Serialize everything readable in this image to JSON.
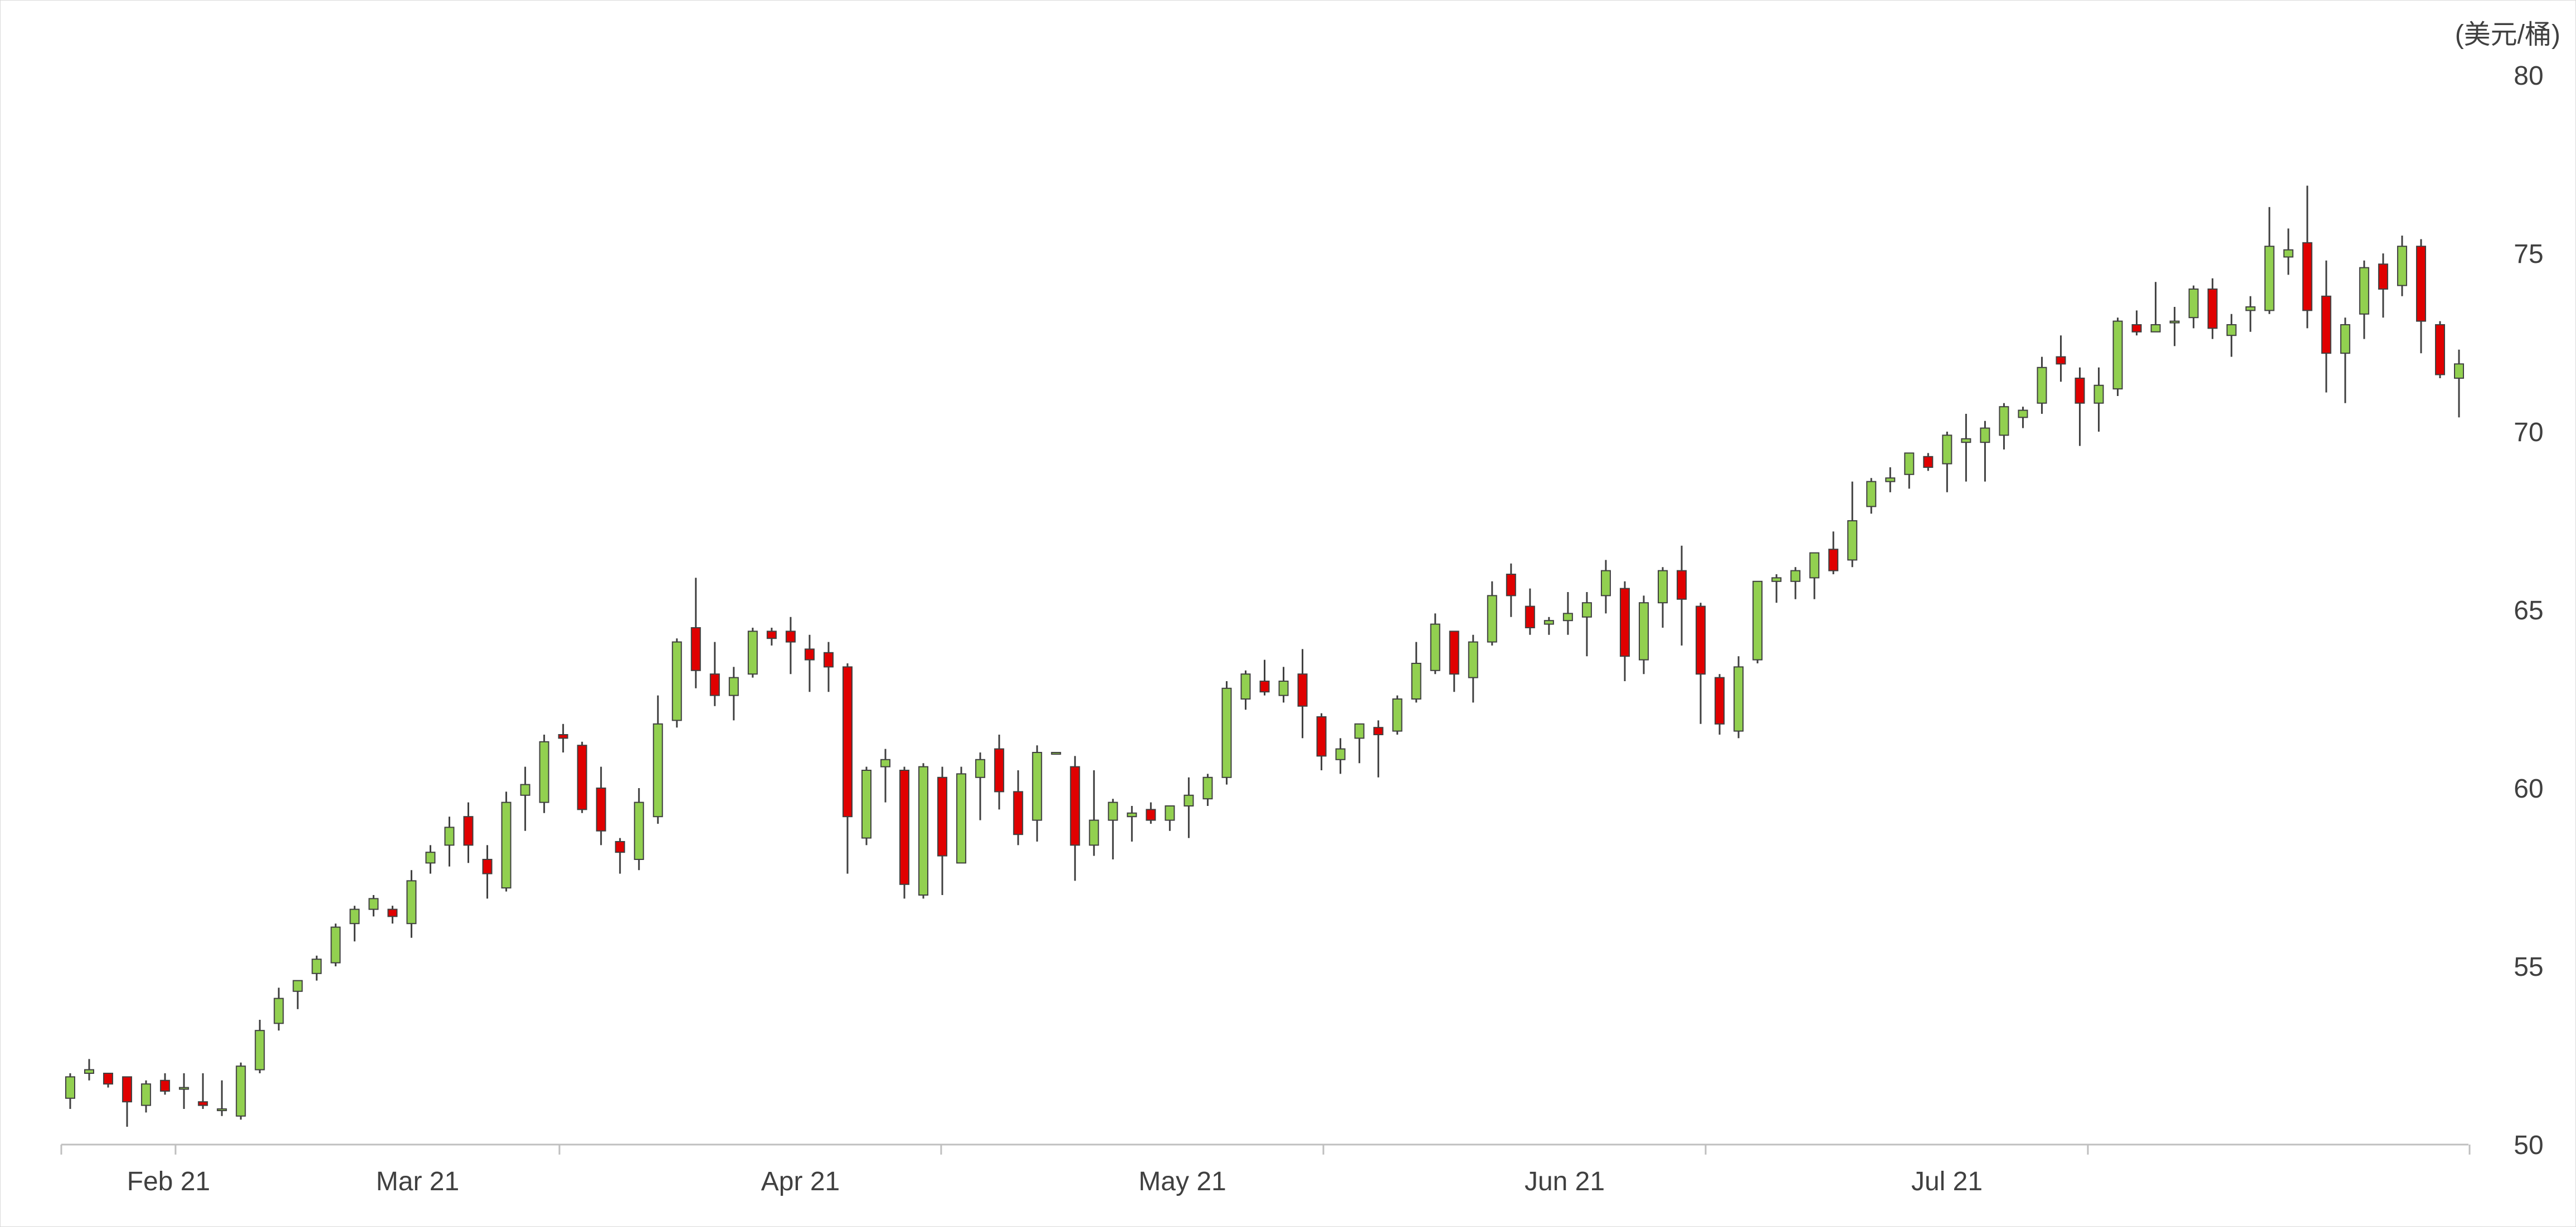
{
  "chart_data": {
    "type": "candlestick",
    "unit": "(美元/桶)",
    "y_axis": {
      "position": "right",
      "min": 50,
      "max": 80,
      "ticks": [
        50,
        55,
        60,
        65,
        70,
        75,
        80
      ]
    },
    "x_axis": {
      "labels": [
        "Feb 21",
        "Mar 21",
        "Apr 21",
        "May 21",
        "Jun 21",
        "Jul 21"
      ]
    },
    "colors": {
      "up": "#92d050",
      "down": "#e00000",
      "wick": "#404040",
      "axis": "#bfbfbf"
    },
    "candles": [
      [
        51.3,
        52.0,
        51.0,
        51.9
      ],
      [
        52.0,
        52.4,
        51.8,
        52.1
      ],
      [
        52.0,
        52.0,
        51.6,
        51.7
      ],
      [
        51.9,
        51.9,
        50.5,
        51.2
      ],
      [
        51.1,
        51.8,
        50.9,
        51.7
      ],
      [
        51.8,
        52.0,
        51.4,
        51.5
      ],
      [
        51.6,
        52.0,
        51.0,
        51.6
      ],
      [
        51.2,
        52.0,
        51.0,
        51.1
      ],
      [
        51.0,
        51.8,
        50.8,
        51.0
      ],
      [
        50.8,
        52.3,
        50.7,
        52.2
      ],
      [
        52.1,
        53.5,
        52.0,
        53.2
      ],
      [
        53.4,
        54.4,
        53.2,
        54.1
      ],
      [
        54.3,
        54.6,
        53.8,
        54.6
      ],
      [
        54.8,
        55.3,
        54.6,
        55.2
      ],
      [
        55.1,
        56.2,
        55.0,
        56.1
      ],
      [
        56.2,
        56.7,
        55.7,
        56.6
      ],
      [
        56.6,
        57.0,
        56.4,
        56.9
      ],
      [
        56.6,
        56.7,
        56.2,
        56.4
      ],
      [
        56.2,
        57.7,
        55.8,
        57.4
      ],
      [
        57.9,
        58.4,
        57.6,
        58.2
      ],
      [
        58.4,
        59.2,
        57.8,
        58.9
      ],
      [
        59.2,
        59.6,
        57.9,
        58.4
      ],
      [
        58.0,
        58.4,
        56.9,
        57.6
      ],
      [
        57.2,
        59.9,
        57.1,
        59.6
      ],
      [
        59.8,
        60.6,
        58.8,
        60.1
      ],
      [
        59.6,
        61.5,
        59.3,
        61.3
      ],
      [
        61.5,
        61.8,
        61.0,
        61.4
      ],
      [
        61.2,
        61.3,
        59.3,
        59.4
      ],
      [
        60.0,
        60.6,
        58.4,
        58.8
      ],
      [
        58.5,
        58.6,
        57.6,
        58.2
      ],
      [
        58.0,
        60.0,
        57.7,
        59.6
      ],
      [
        59.2,
        62.6,
        59.0,
        61.8
      ],
      [
        61.9,
        64.2,
        61.7,
        64.1
      ],
      [
        64.5,
        65.9,
        62.8,
        63.3
      ],
      [
        63.2,
        64.1,
        62.3,
        62.6
      ],
      [
        62.6,
        63.4,
        61.9,
        63.1
      ],
      [
        63.2,
        64.5,
        63.1,
        64.4
      ],
      [
        64.4,
        64.5,
        64.0,
        64.2
      ],
      [
        64.4,
        64.8,
        63.2,
        64.1
      ],
      [
        63.9,
        64.3,
        62.7,
        63.6
      ],
      [
        63.8,
        64.1,
        62.7,
        63.4
      ],
      [
        63.4,
        63.5,
        57.6,
        59.2
      ],
      [
        58.6,
        60.6,
        58.4,
        60.5
      ],
      [
        60.6,
        61.1,
        59.6,
        60.8
      ],
      [
        60.5,
        60.6,
        56.9,
        57.3
      ],
      [
        57.0,
        60.7,
        56.9,
        60.6
      ],
      [
        60.3,
        60.6,
        57.0,
        58.1
      ],
      [
        57.9,
        60.6,
        57.9,
        60.4
      ],
      [
        60.3,
        61.0,
        59.1,
        60.8
      ],
      [
        61.1,
        61.5,
        59.4,
        59.9
      ],
      [
        59.9,
        60.5,
        58.4,
        58.7
      ],
      [
        59.1,
        61.2,
        58.5,
        61.0
      ],
      [
        61.0,
        61.0,
        61.0,
        61.0
      ],
      [
        60.6,
        60.9,
        57.4,
        58.4
      ],
      [
        58.4,
        60.5,
        58.1,
        59.1
      ],
      [
        59.1,
        59.7,
        58.0,
        59.6
      ],
      [
        59.2,
        59.5,
        58.5,
        59.3
      ],
      [
        59.4,
        59.6,
        59.0,
        59.1
      ],
      [
        59.1,
        59.5,
        58.8,
        59.5
      ],
      [
        59.5,
        60.3,
        58.6,
        59.8
      ],
      [
        59.7,
        60.4,
        59.5,
        60.3
      ],
      [
        60.3,
        63.0,
        60.1,
        62.8
      ],
      [
        62.5,
        63.3,
        62.2,
        63.2
      ],
      [
        63.0,
        63.6,
        62.6,
        62.7
      ],
      [
        62.6,
        63.4,
        62.4,
        63.0
      ],
      [
        63.2,
        63.9,
        61.4,
        62.3
      ],
      [
        62.0,
        62.1,
        60.5,
        60.9
      ],
      [
        60.8,
        61.4,
        60.4,
        61.1
      ],
      [
        61.4,
        61.8,
        60.7,
        61.8
      ],
      [
        61.7,
        61.9,
        60.3,
        61.5
      ],
      [
        61.6,
        62.6,
        61.5,
        62.5
      ],
      [
        62.5,
        64.1,
        62.4,
        63.5
      ],
      [
        63.3,
        64.9,
        63.2,
        64.6
      ],
      [
        64.4,
        64.4,
        62.7,
        63.2
      ],
      [
        63.1,
        64.3,
        62.4,
        64.1
      ],
      [
        64.1,
        65.8,
        64.0,
        65.4
      ],
      [
        66.0,
        66.3,
        64.8,
        65.4
      ],
      [
        65.1,
        65.6,
        64.3,
        64.5
      ],
      [
        64.6,
        64.8,
        64.3,
        64.7
      ],
      [
        64.7,
        65.5,
        64.3,
        64.9
      ],
      [
        64.8,
        65.5,
        63.7,
        65.2
      ],
      [
        65.4,
        66.4,
        64.9,
        66.1
      ],
      [
        65.6,
        65.8,
        63.0,
        63.7
      ],
      [
        63.6,
        65.4,
        63.2,
        65.2
      ],
      [
        65.2,
        66.2,
        64.5,
        66.1
      ],
      [
        66.1,
        66.8,
        64.0,
        65.3
      ],
      [
        65.1,
        65.2,
        61.8,
        63.2
      ],
      [
        63.1,
        63.2,
        61.5,
        61.8
      ],
      [
        61.6,
        63.7,
        61.4,
        63.4
      ],
      [
        63.6,
        65.8,
        63.5,
        65.8
      ],
      [
        65.8,
        66.0,
        65.2,
        65.9
      ],
      [
        65.8,
        66.2,
        65.3,
        66.1
      ],
      [
        65.9,
        66.6,
        65.3,
        66.6
      ],
      [
        66.7,
        67.2,
        66.0,
        66.1
      ],
      [
        66.4,
        68.6,
        66.2,
        67.5
      ],
      [
        67.9,
        68.7,
        67.7,
        68.6
      ],
      [
        68.6,
        69.0,
        68.3,
        68.7
      ],
      [
        68.8,
        69.4,
        68.4,
        69.4
      ],
      [
        69.3,
        69.4,
        68.9,
        69.0
      ],
      [
        69.1,
        70.0,
        68.3,
        69.9
      ],
      [
        69.7,
        70.5,
        68.6,
        69.8
      ],
      [
        69.7,
        70.3,
        68.6,
        70.1
      ],
      [
        69.9,
        70.8,
        69.5,
        70.7
      ],
      [
        70.4,
        70.7,
        70.1,
        70.6
      ],
      [
        70.8,
        72.1,
        70.5,
        71.8
      ],
      [
        72.1,
        72.7,
        71.4,
        71.9
      ],
      [
        71.5,
        71.8,
        69.6,
        70.8
      ],
      [
        70.8,
        71.8,
        70.0,
        71.3
      ],
      [
        71.2,
        73.2,
        71.0,
        73.1
      ],
      [
        73.0,
        73.4,
        72.7,
        72.8
      ],
      [
        72.8,
        74.2,
        72.8,
        73.0
      ],
      [
        73.1,
        73.5,
        72.4,
        73.1
      ],
      [
        73.2,
        74.1,
        72.9,
        74.0
      ],
      [
        74.0,
        74.3,
        72.6,
        72.9
      ],
      [
        72.7,
        73.3,
        72.1,
        73.0
      ],
      [
        73.4,
        73.8,
        72.8,
        73.5
      ],
      [
        73.4,
        76.3,
        73.3,
        75.2
      ],
      [
        74.9,
        75.7,
        74.4,
        75.1
      ],
      [
        75.3,
        76.9,
        72.9,
        73.4
      ],
      [
        73.8,
        74.8,
        71.1,
        72.2
      ],
      [
        72.2,
        73.2,
        70.8,
        73.0
      ],
      [
        73.3,
        74.8,
        72.6,
        74.6
      ],
      [
        74.7,
        75.0,
        73.2,
        74.0
      ],
      [
        74.1,
        75.5,
        73.8,
        75.2
      ],
      [
        75.2,
        75.4,
        72.2,
        73.1
      ],
      [
        73.0,
        73.1,
        71.5,
        71.6
      ],
      [
        71.5,
        72.3,
        70.4,
        71.9
      ]
    ]
  }
}
